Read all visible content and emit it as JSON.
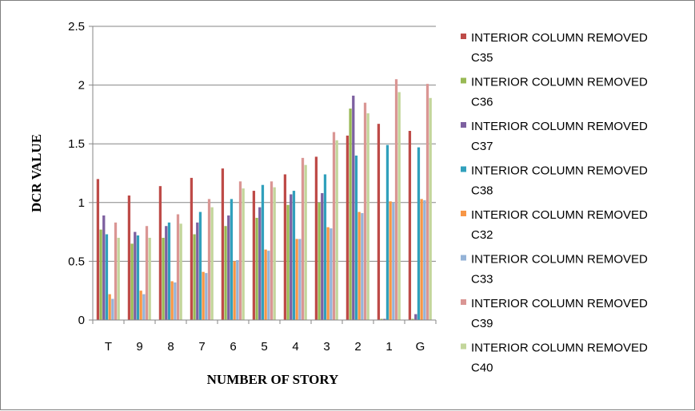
{
  "chart_data": {
    "type": "bar",
    "title": "",
    "xlabel": "NUMBER OF STORY",
    "ylabel": "DCR VALUE",
    "ylim": [
      0,
      2.5
    ],
    "yticks": [
      "0",
      "0.5",
      "1",
      "1.5",
      "2",
      "2.5"
    ],
    "ytick_values": [
      0,
      0.5,
      1,
      1.5,
      2,
      2.5
    ],
    "grid": true,
    "legend_position": "right",
    "categories": [
      "T",
      "9",
      "8",
      "7",
      "6",
      "5",
      "4",
      "3",
      "2",
      "1",
      "G"
    ],
    "series": [
      {
        "name": "INTERIOR COLUMN REMOVED C35",
        "color": "#BE4B48",
        "values": [
          1.2,
          1.06,
          1.14,
          1.21,
          1.29,
          1.1,
          1.24,
          1.39,
          1.57,
          1.67,
          1.61
        ]
      },
      {
        "name": "INTERIOR COLUMN REMOVED C36",
        "color": "#98B954",
        "values": [
          0.77,
          0.65,
          0.7,
          0.73,
          0.8,
          0.87,
          0.98,
          1.0,
          1.8,
          0.01,
          0.01
        ]
      },
      {
        "name": "INTERIOR COLUMN REMOVED C37",
        "color": "#7D60A0",
        "values": [
          0.89,
          0.75,
          0.8,
          0.83,
          0.89,
          0.96,
          1.07,
          1.08,
          1.91,
          0.01,
          0.05
        ]
      },
      {
        "name": "INTERIOR COLUMN REMOVED C38",
        "color": "#31A0BC",
        "values": [
          0.73,
          0.72,
          0.83,
          0.92,
          1.03,
          1.15,
          1.1,
          1.24,
          1.4,
          1.49,
          1.47
        ]
      },
      {
        "name": "INTERIOR COLUMN REMOVED C32",
        "color": "#F79646",
        "values": [
          0.22,
          0.25,
          0.33,
          0.41,
          0.5,
          0.6,
          0.69,
          0.79,
          0.92,
          1.01,
          1.03
        ]
      },
      {
        "name": "INTERIOR COLUMN REMOVED C33",
        "color": "#95B3D7",
        "values": [
          0.18,
          0.22,
          0.32,
          0.4,
          0.51,
          0.59,
          0.69,
          0.78,
          0.91,
          1.0,
          1.02
        ]
      },
      {
        "name": "INTERIOR COLUMN REMOVED C39",
        "color": "#DA9694",
        "values": [
          0.83,
          0.8,
          0.9,
          1.03,
          1.18,
          1.18,
          1.38,
          1.6,
          1.85,
          2.05,
          2.01
        ]
      },
      {
        "name": "INTERIOR COLUMN REMOVED C40",
        "color": "#C3D69B",
        "values": [
          0.7,
          0.7,
          0.82,
          0.96,
          1.12,
          1.13,
          1.32,
          1.53,
          1.76,
          1.94,
          1.89
        ]
      }
    ]
  }
}
